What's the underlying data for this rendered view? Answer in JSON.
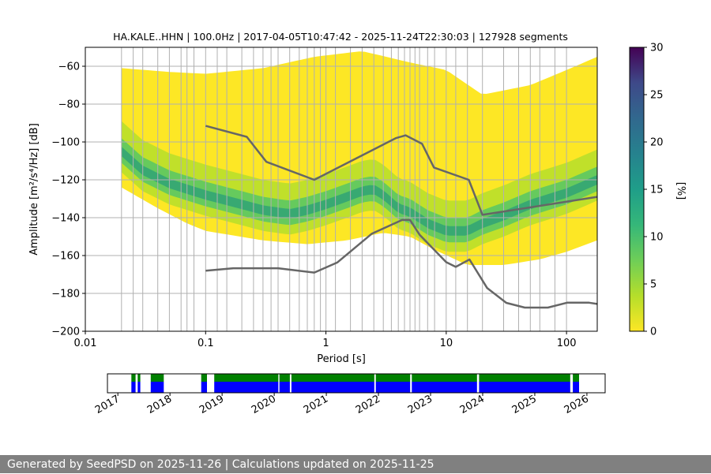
{
  "chart_data": [
    {
      "type": "heatmap",
      "title": "HA.KALE..HHN | 100.0Hz | 2017-04-05T10:47:42 - 2025-11-24T22:30:03 | 127928 segments",
      "xlabel": "Period [s]",
      "ylabel": "Amplitude [m²/s⁴/Hz] [dB]",
      "xscale": "log",
      "xlim": [
        0.01,
        180
      ],
      "ylim": [
        -200,
        -50
      ],
      "xticks": [
        {
          "value": 0.01,
          "label": "0.01"
        },
        {
          "value": 0.1,
          "label": "0.1"
        },
        {
          "value": 1,
          "label": "1"
        },
        {
          "value": 10,
          "label": "10"
        },
        {
          "value": 100,
          "label": "100"
        }
      ],
      "yticks": [
        {
          "value": -60,
          "label": "−60"
        },
        {
          "value": -80,
          "label": "−80"
        },
        {
          "value": -100,
          "label": "−100"
        },
        {
          "value": -120,
          "label": "−120"
        },
        {
          "value": -140,
          "label": "−140"
        },
        {
          "value": -160,
          "label": "−160"
        },
        {
          "value": -180,
          "label": "−180"
        },
        {
          "value": -200,
          "label": "−200"
        }
      ],
      "grid": true,
      "grid_periods": [
        0.02,
        0.025,
        0.03,
        0.04,
        0.05,
        0.0625,
        0.07,
        0.08,
        0.1,
        0.125,
        0.15,
        0.2,
        0.25,
        0.3,
        0.35,
        0.4,
        0.5,
        0.6,
        0.7,
        0.8,
        0.9,
        1,
        1.2,
        1.6,
        2,
        2.5,
        3,
        3.5,
        4,
        4.5,
        5,
        5.5,
        6,
        7,
        8,
        10,
        12,
        15,
        20,
        30,
        40,
        50,
        60,
        80,
        100
      ],
      "colorbar": {
        "label": "[%]",
        "min": 0,
        "max": 30,
        "ticks": [
          0,
          5,
          10,
          15,
          20,
          25,
          30
        ],
        "colormap": "viridis"
      },
      "density": {
        "period_range": [
          0.02,
          180
        ],
        "upper_envelope": [
          [
            0.02,
            -61
          ],
          [
            0.05,
            -63
          ],
          [
            0.1,
            -64
          ],
          [
            0.3,
            -61
          ],
          [
            0.8,
            -55
          ],
          [
            2,
            -52
          ],
          [
            5,
            -58
          ],
          [
            10,
            -62
          ],
          [
            20,
            -75
          ],
          [
            50,
            -70
          ],
          [
            100,
            -62
          ],
          [
            180,
            -55
          ]
        ],
        "lower_envelope": [
          [
            0.02,
            -124
          ],
          [
            0.04,
            -135
          ],
          [
            0.07,
            -143
          ],
          [
            0.1,
            -147
          ],
          [
            0.3,
            -152
          ],
          [
            0.7,
            -154
          ],
          [
            1.5,
            -152
          ],
          [
            3,
            -148
          ],
          [
            5,
            -150
          ],
          [
            8,
            -157
          ],
          [
            15,
            -165
          ],
          [
            30,
            -165
          ],
          [
            60,
            -162
          ],
          [
            100,
            -158
          ],
          [
            180,
            -152
          ]
        ],
        "mode_curve": [
          [
            0.02,
            -105
          ],
          [
            0.03,
            -115
          ],
          [
            0.05,
            -122
          ],
          [
            0.1,
            -128
          ],
          [
            0.2,
            -133
          ],
          [
            0.3,
            -136
          ],
          [
            0.5,
            -138
          ],
          [
            0.7,
            -136
          ],
          [
            1,
            -133
          ],
          [
            1.5,
            -129
          ],
          [
            2,
            -126
          ],
          [
            2.5,
            -125
          ],
          [
            3,
            -128
          ],
          [
            4,
            -135
          ],
          [
            5,
            -137
          ],
          [
            7,
            -143
          ],
          [
            10,
            -147
          ],
          [
            15,
            -147
          ],
          [
            20,
            -143
          ],
          [
            30,
            -139
          ],
          [
            50,
            -133
          ],
          [
            100,
            -127
          ],
          [
            180,
            -120
          ]
        ]
      },
      "series": [
        {
          "x": [
            0.1,
            0.22,
            0.32,
            0.8,
            3.8,
            4.6,
            6.3,
            7.9,
            15.4,
            20,
            180
          ],
          "values": [
            -91.5,
            -97.3,
            -110.5,
            -120,
            -98,
            -96.5,
            -101,
            -113.5,
            -120,
            -138.5,
            -129
          ]
        },
        {
          "x": [
            0.1,
            0.17,
            0.4,
            0.8,
            1.24,
            2.4,
            4.3,
            5.0,
            6.0,
            10,
            12,
            15.6,
            21.9,
            31.6,
            45,
            70,
            101,
            154,
            180
          ],
          "values": [
            -168,
            -166.7,
            -166.7,
            -169,
            -163.7,
            -148.5,
            -141.2,
            -141.2,
            -149,
            -163.5,
            -166,
            -162.1,
            -177.2,
            -185,
            -187.5,
            -187.5,
            -184.9,
            -184.9,
            -185.6
          ]
        }
      ],
      "colors": {
        "nlnm_nhnm": "#666666",
        "grid": "#b0b0b0"
      }
    },
    {
      "type": "bar",
      "title": "",
      "xlim": [
        2016.8,
        2026.35
      ],
      "xticks": [
        {
          "value": 2017,
          "label": "2017"
        },
        {
          "value": 2018,
          "label": "2018"
        },
        {
          "value": 2019,
          "label": "2019"
        },
        {
          "value": 2020,
          "label": "2020"
        },
        {
          "value": 2021,
          "label": "2021"
        },
        {
          "value": 2022,
          "label": "2022"
        },
        {
          "value": 2023,
          "label": "2023"
        },
        {
          "value": 2024,
          "label": "2024"
        },
        {
          "value": 2025,
          "label": "2025"
        },
        {
          "value": 2026,
          "label": "2026"
        }
      ],
      "segments": [
        [
          2017.26,
          2017.34
        ],
        [
          2017.38,
          2017.43
        ],
        [
          2017.63,
          2017.88
        ],
        [
          2018.6,
          2018.71
        ],
        [
          2018.85,
          2020.08
        ],
        [
          2020.1,
          2020.3
        ],
        [
          2020.33,
          2021.92
        ],
        [
          2021.95,
          2022.61
        ],
        [
          2022.64,
          2023.89
        ],
        [
          2023.93,
          2025.68
        ],
        [
          2025.73,
          2025.85
        ]
      ],
      "colors": {
        "available": "#0000ff",
        "data": "#008000"
      }
    }
  ],
  "footer": {
    "text": "Generated by SeedPSD on 2025-11-26 | Calculations updated on 2025-11-25"
  }
}
